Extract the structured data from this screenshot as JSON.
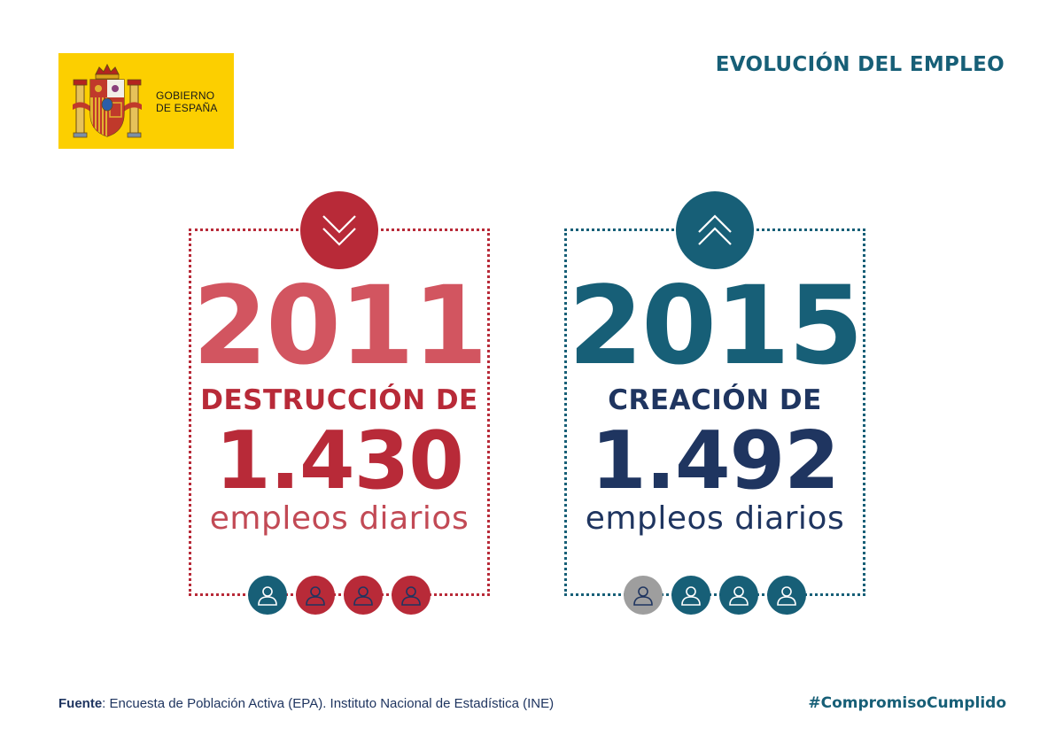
{
  "logo": {
    "line1": "GOBIERNO",
    "line2": "DE ESPAÑA",
    "background": "#fccf00"
  },
  "title": "EVOLUCIÓN DEL EMPLEO",
  "panels": {
    "left": {
      "year": "2011",
      "label": "DESTRUCCIÓN DE",
      "count": "1.430",
      "unit": "empleos diarios",
      "badge_icon": "chevron-down-icon",
      "color": "#b82a38",
      "people": [
        "teal",
        "red",
        "red",
        "red"
      ]
    },
    "right": {
      "year": "2015",
      "label": "CREACIÓN DE",
      "count": "1.492",
      "unit": "empleos diarios",
      "badge_icon": "chevron-up-icon",
      "color": "#175f77",
      "people": [
        "gray",
        "teal",
        "teal",
        "teal"
      ]
    }
  },
  "footer": {
    "source_label": "Fuente",
    "source_text": ": Encuesta de Población Activa (EPA). Instituto Nacional de Estadística  (INE)",
    "hashtag": "#CompromisoCumplido"
  },
  "colors": {
    "teal": "#175f77",
    "red": "#b82a38",
    "navy": "#1f3560",
    "gray": "#9e9e9e"
  }
}
